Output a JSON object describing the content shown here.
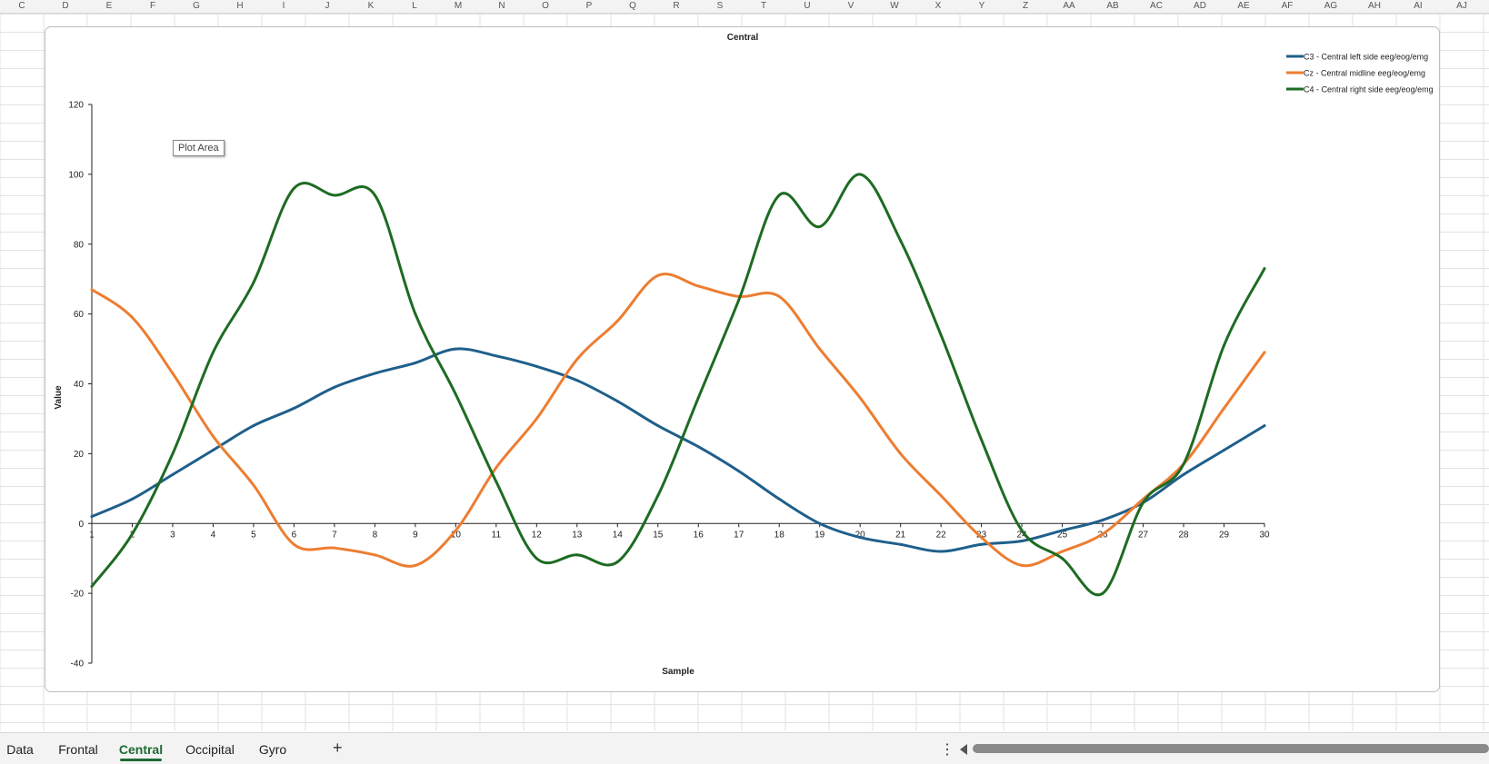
{
  "columns": [
    "C",
    "D",
    "E",
    "F",
    "G",
    "H",
    "I",
    "J",
    "K",
    "L",
    "M",
    "N",
    "O",
    "P",
    "Q",
    "R",
    "S",
    "T",
    "U",
    "V",
    "W",
    "X",
    "Y",
    "Z",
    "AA",
    "AB",
    "AC",
    "AD",
    "AE",
    "AF",
    "AG",
    "AH",
    "AI",
    "AJ"
  ],
  "tooltip": "Plot Area",
  "sheet_tabs": [
    "Data",
    "Frontal",
    "Central",
    "Occipital",
    "Gyro"
  ],
  "active_tab": "Central",
  "add_sheet_label": "+",
  "more_label": "⋮",
  "chart_data": {
    "type": "line",
    "title": "Central",
    "xlabel": "Sample",
    "ylabel": "Value",
    "x": [
      1,
      2,
      3,
      4,
      5,
      6,
      7,
      8,
      9,
      10,
      11,
      12,
      13,
      14,
      15,
      16,
      17,
      18,
      19,
      20,
      21,
      22,
      23,
      24,
      25,
      26,
      27,
      28,
      29,
      30
    ],
    "ylim": [
      -40,
      120
    ],
    "yticks": [
      -40,
      -20,
      0,
      20,
      40,
      60,
      80,
      100,
      120
    ],
    "legend_position": "top-right",
    "smooth": true,
    "series": [
      {
        "name": "C3 - Central left side eeg/eog/emg",
        "color": "#1f5f8b",
        "values": [
          2,
          7,
          14,
          21,
          28,
          33,
          39,
          43,
          46,
          50,
          48,
          45,
          41,
          35,
          28,
          22,
          15,
          7,
          0,
          -4,
          -6,
          -8,
          -6,
          -5,
          -2,
          1,
          6,
          14,
          21,
          28
        ]
      },
      {
        "name": "Cz - Central midline eeg/eog/emg",
        "color": "#ed7d31",
        "values": [
          67,
          59,
          43,
          25,
          11,
          -6,
          -7,
          -9,
          -12,
          -2,
          16,
          30,
          47,
          58,
          71,
          68,
          65,
          65,
          50,
          36,
          20,
          8,
          -4,
          -12,
          -8,
          -3,
          7,
          17,
          33,
          49
        ]
      },
      {
        "name": "C4 - Central right side eeg/eog/emg",
        "color": "#1e6b22",
        "values": [
          -18,
          -3,
          20,
          49,
          69,
          96,
          94,
          94,
          60,
          37,
          12,
          -10,
          -9,
          -11,
          8,
          36,
          64,
          94,
          85,
          100,
          81,
          54,
          24,
          -2,
          -10,
          -20,
          6,
          17,
          51,
          73
        ]
      }
    ]
  }
}
